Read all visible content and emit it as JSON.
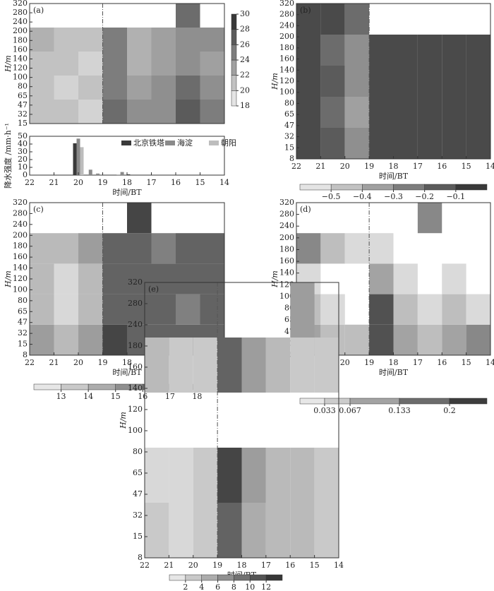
{
  "chart_data": [
    {
      "type": "heatmap",
      "label": "(a)",
      "ylabel": "H/m",
      "xlim": [
        22,
        14
      ],
      "y_categories": [
        15,
        32,
        47,
        65,
        80,
        100,
        120,
        140,
        160,
        180,
        200,
        240,
        280,
        320
      ],
      "vline": 19,
      "colorbar": "vertical",
      "clim": [
        18,
        30
      ],
      "cticks": [
        18,
        20,
        22,
        24,
        26,
        28,
        30
      ],
      "z": [
        [
          21,
          21,
          20,
          26,
          24,
          24,
          27,
          25
        ],
        [
          21,
          20,
          21,
          25,
          23,
          24,
          26,
          24
        ],
        [
          21,
          21,
          20,
          25,
          22,
          23,
          24,
          23
        ],
        [
          22,
          21,
          21,
          25,
          22,
          23,
          24,
          24
        ],
        [
          null,
          null,
          null,
          null,
          null,
          null,
          26,
          null
        ]
      ]
    },
    {
      "type": "bar",
      "ylabel": "降水强度 /mm·h⁻¹",
      "xlabel": "时间/BT",
      "xlim": [
        22,
        14
      ],
      "xticks": [
        22,
        21,
        20,
        19,
        18,
        17,
        16,
        15,
        14
      ],
      "ylim": [
        0,
        50
      ],
      "yticks": [
        0,
        10,
        20,
        30,
        40,
        50
      ],
      "x": [
        20,
        19.5,
        19.2,
        18.5,
        18.2,
        17.8
      ],
      "series": [
        {
          "name": "北京铁塔",
          "color": "#3a3a3a",
          "values": [
            41,
            0,
            0,
            0,
            0,
            1
          ]
        },
        {
          "name": "海淀",
          "color": "#8a8a8a",
          "values": [
            47,
            7,
            2,
            0,
            4,
            0
          ]
        },
        {
          "name": "朝阳",
          "color": "#bdbdbd",
          "values": [
            36,
            0,
            0,
            1,
            0,
            0
          ]
        }
      ]
    },
    {
      "type": "heatmap",
      "label": "(b)",
      "ylabel": "H/m",
      "xlabel": "时间/BT",
      "xlim": [
        22,
        14
      ],
      "xticks": [
        22,
        21,
        20,
        19,
        18,
        17,
        16,
        15,
        14
      ],
      "y_categories": [
        8,
        15,
        32,
        47,
        65,
        80,
        100,
        120,
        140,
        160,
        180,
        200,
        240,
        280,
        320
      ],
      "vline": 19,
      "colorbar": "horizontal",
      "clim": [
        -0.6,
        0
      ],
      "cticks": [
        {
          "value": -0.5,
          "label": "−0.5"
        },
        {
          "value": -0.4,
          "label": "−0.4"
        },
        {
          "value": -0.3,
          "label": "−0.3"
        },
        {
          "value": -0.2,
          "label": "−0.2"
        },
        {
          "value": -0.1,
          "label": "−0.1"
        }
      ],
      "z": [
        [
          -0.1,
          -0.15,
          -0.3,
          -0.1,
          -0.1,
          -0.1,
          -0.1,
          -0.1
        ],
        [
          -0.1,
          -0.2,
          -0.35,
          -0.1,
          -0.1,
          -0.1,
          -0.1,
          -0.1
        ],
        [
          -0.1,
          -0.15,
          -0.3,
          -0.1,
          -0.1,
          -0.1,
          -0.1,
          -0.1
        ],
        [
          -0.1,
          -0.2,
          -0.3,
          -0.1,
          -0.1,
          -0.1,
          -0.1,
          -0.1
        ],
        [
          -0.1,
          -0.1,
          -0.2,
          null,
          null,
          null,
          null,
          null
        ]
      ]
    },
    {
      "type": "heatmap",
      "label": "(c)",
      "ylabel": "H/m",
      "xlabel": "时间/BT",
      "xlim": [
        22,
        14
      ],
      "xticks": [
        22,
        21,
        20,
        19,
        18,
        17,
        16,
        15,
        14
      ],
      "y_categories": [
        8,
        15,
        32,
        47,
        65,
        80,
        100,
        120,
        140,
        160,
        180,
        200,
        240,
        280,
        320
      ],
      "vline": 19,
      "colorbar": "horizontal",
      "clim": [
        12,
        19
      ],
      "cticks": [
        13,
        14,
        15,
        16,
        17,
        18
      ],
      "z": [
        [
          15,
          14,
          15,
          18,
          17,
          17,
          17,
          17
        ],
        [
          14,
          13,
          14,
          17,
          17,
          17,
          16,
          17
        ],
        [
          14,
          13,
          14,
          17,
          17,
          17,
          17,
          17
        ],
        [
          14,
          14,
          15,
          17,
          17,
          16,
          17,
          17
        ],
        [
          null,
          null,
          null,
          null,
          18,
          null,
          null,
          null
        ]
      ]
    },
    {
      "type": "heatmap",
      "label": "(d)",
      "ylabel": "H/m",
      "xlabel": "时间/BT",
      "xlim": [
        22,
        14
      ],
      "xticks": [
        22,
        21,
        20,
        19,
        18,
        17,
        16,
        15,
        14
      ],
      "y_categories": [
        15,
        32,
        47,
        65,
        80,
        100,
        120,
        140,
        160,
        180,
        200,
        240,
        280,
        320
      ],
      "vline": 19,
      "colorbar": "horizontal",
      "clim": [
        0,
        0.25
      ],
      "cticks": [
        0.033,
        0.067,
        0.133,
        0.2
      ],
      "z": [
        [
          0.1,
          0.067,
          0.067,
          0.2,
          0.1,
          0.067,
          0.1,
          0.133
        ],
        [
          0.067,
          0.033,
          null,
          0.2,
          0.067,
          0.033,
          0.067,
          0.033
        ],
        [
          0.033,
          null,
          null,
          0.1,
          0.033,
          null,
          0.033,
          null
        ],
        [
          0.133,
          0.067,
          0.033,
          0.033,
          null,
          null,
          null,
          null
        ],
        [
          null,
          null,
          null,
          null,
          null,
          0.133,
          null,
          null
        ]
      ]
    },
    {
      "type": "heatmap",
      "label": "(e)",
      "ylabel": "H/m",
      "xlabel": "时间/BT",
      "xlim": [
        22,
        14
      ],
      "xticks": [
        22,
        21,
        20,
        19,
        18,
        17,
        16,
        15,
        14
      ],
      "y_categories": [
        8,
        15,
        32,
        47,
        65,
        80,
        100,
        120,
        140,
        160,
        180,
        240,
        280,
        320
      ],
      "vline": 19,
      "colorbar": "horizontal",
      "clim": [
        0,
        14
      ],
      "cticks": [
        2,
        4,
        6,
        8,
        10,
        12
      ],
      "z": [
        [
          3,
          2,
          3,
          10,
          5,
          4,
          4,
          3
        ],
        [
          2,
          2,
          3,
          12,
          6,
          4,
          4,
          3
        ],
        [
          null,
          null,
          null,
          null,
          null,
          null,
          null,
          null
        ],
        [
          4,
          3,
          3,
          10,
          6,
          4,
          3,
          3
        ],
        [
          null,
          null,
          null,
          null,
          null,
          null,
          6,
          null
        ]
      ]
    }
  ]
}
